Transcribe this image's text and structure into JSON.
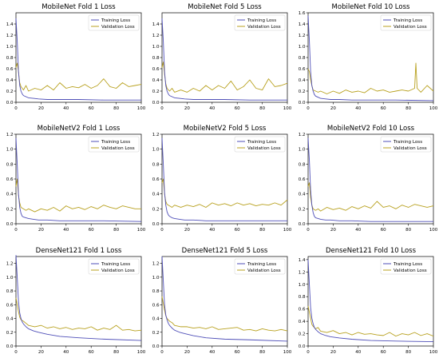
{
  "chart_data": [
    {
      "type": "line",
      "title": "MobileNet Fold 1 Loss",
      "xlim": [
        0,
        100
      ],
      "ylim": [
        0,
        1.6
      ],
      "yticks": [
        0.0,
        0.2,
        0.4,
        0.6,
        0.8,
        1.0,
        1.2,
        1.4
      ],
      "xticks": [
        0,
        20,
        40,
        60,
        80,
        100
      ],
      "legend": "top-right",
      "series": [
        {
          "name": "Training Loss",
          "color": "#4f4fb8",
          "x": [
            0,
            1,
            2,
            3,
            4,
            5,
            6,
            8,
            10,
            14,
            18,
            25,
            35,
            50,
            70,
            100
          ],
          "values": [
            1.5,
            1.1,
            0.55,
            0.3,
            0.2,
            0.15,
            0.12,
            0.1,
            0.08,
            0.07,
            0.06,
            0.05,
            0.05,
            0.05,
            0.04,
            0.04
          ]
        },
        {
          "name": "Validation Loss",
          "color": "#b8a11f",
          "x": [
            0,
            1,
            2,
            3,
            4,
            6,
            8,
            10,
            15,
            20,
            25,
            30,
            35,
            40,
            45,
            50,
            55,
            60,
            65,
            70,
            75,
            80,
            85,
            90,
            95,
            100
          ],
          "values": [
            0.62,
            0.7,
            0.55,
            0.35,
            0.28,
            0.22,
            0.3,
            0.2,
            0.25,
            0.22,
            0.3,
            0.22,
            0.35,
            0.25,
            0.28,
            0.26,
            0.32,
            0.25,
            0.3,
            0.42,
            0.28,
            0.25,
            0.35,
            0.28,
            0.3,
            0.32
          ]
        }
      ]
    },
    {
      "type": "line",
      "title": "MobileNet Fold 5 Loss",
      "xlim": [
        0,
        100
      ],
      "ylim": [
        0,
        1.6
      ],
      "yticks": [
        0.0,
        0.2,
        0.4,
        0.6,
        0.8,
        1.0,
        1.2,
        1.4
      ],
      "xticks": [
        0,
        20,
        40,
        60,
        80,
        100
      ],
      "legend": "top-right",
      "series": [
        {
          "name": "Training Loss",
          "color": "#4f4fb8",
          "x": [
            0,
            1,
            2,
            3,
            4,
            5,
            6,
            8,
            10,
            14,
            18,
            25,
            35,
            50,
            70,
            100
          ],
          "values": [
            1.5,
            1.1,
            0.55,
            0.3,
            0.2,
            0.15,
            0.12,
            0.1,
            0.08,
            0.07,
            0.06,
            0.05,
            0.05,
            0.05,
            0.04,
            0.04
          ]
        },
        {
          "name": "Validation Loss",
          "color": "#b8a11f",
          "x": [
            0,
            1,
            2,
            3,
            4,
            6,
            8,
            10,
            15,
            20,
            25,
            30,
            35,
            40,
            45,
            50,
            55,
            60,
            65,
            70,
            75,
            80,
            85,
            90,
            95,
            100
          ],
          "values": [
            0.62,
            0.72,
            0.5,
            0.33,
            0.25,
            0.2,
            0.25,
            0.18,
            0.22,
            0.18,
            0.25,
            0.2,
            0.3,
            0.22,
            0.3,
            0.25,
            0.38,
            0.22,
            0.28,
            0.4,
            0.25,
            0.22,
            0.42,
            0.28,
            0.3,
            0.34
          ]
        }
      ]
    },
    {
      "type": "line",
      "title": "MobileNet Fold 10 Loss",
      "xlim": [
        0,
        100
      ],
      "ylim": [
        0,
        1.6
      ],
      "yticks": [
        0.0,
        0.2,
        0.4,
        0.6,
        0.8,
        1.0,
        1.2,
        1.4,
        1.6
      ],
      "xticks": [
        0,
        20,
        40,
        60,
        80,
        100
      ],
      "legend": "top-right",
      "series": [
        {
          "name": "Training Loss",
          "color": "#4f4fb8",
          "x": [
            0,
            1,
            2,
            3,
            4,
            5,
            6,
            8,
            10,
            14,
            18,
            25,
            35,
            50,
            70,
            100
          ],
          "values": [
            1.55,
            1.1,
            0.55,
            0.3,
            0.2,
            0.14,
            0.11,
            0.09,
            0.07,
            0.06,
            0.05,
            0.05,
            0.04,
            0.04,
            0.04,
            0.03
          ]
        },
        {
          "name": "Validation Loss",
          "color": "#b8a11f",
          "x": [
            0,
            1,
            2,
            3,
            4,
            6,
            8,
            10,
            15,
            20,
            25,
            30,
            35,
            40,
            45,
            50,
            55,
            60,
            65,
            70,
            75,
            80,
            85,
            86,
            87,
            90,
            95,
            100
          ],
          "values": [
            0.6,
            0.55,
            0.4,
            0.3,
            0.22,
            0.2,
            0.18,
            0.2,
            0.15,
            0.2,
            0.16,
            0.22,
            0.18,
            0.2,
            0.17,
            0.25,
            0.2,
            0.22,
            0.18,
            0.2,
            0.22,
            0.2,
            0.25,
            0.7,
            0.25,
            0.18,
            0.3,
            0.2
          ]
        }
      ]
    },
    {
      "type": "line",
      "title": "MobileNetV2  Fold 1 Loss",
      "xlim": [
        0,
        100
      ],
      "ylim": [
        0,
        1.2
      ],
      "yticks": [
        0.0,
        0.2,
        0.4,
        0.6,
        0.8,
        1.0,
        1.2
      ],
      "xticks": [
        0,
        20,
        40,
        60,
        80,
        100
      ],
      "legend": "top-right",
      "series": [
        {
          "name": "Training Loss",
          "color": "#4f4fb8",
          "x": [
            0,
            1,
            2,
            3,
            4,
            5,
            6,
            8,
            10,
            14,
            18,
            25,
            35,
            50,
            70,
            100
          ],
          "values": [
            1.15,
            0.8,
            0.4,
            0.22,
            0.14,
            0.1,
            0.09,
            0.08,
            0.07,
            0.06,
            0.05,
            0.05,
            0.04,
            0.04,
            0.04,
            0.03
          ]
        },
        {
          "name": "Validation Loss",
          "color": "#b8a11f",
          "x": [
            0,
            1,
            2,
            3,
            4,
            6,
            8,
            10,
            15,
            20,
            25,
            30,
            35,
            40,
            45,
            50,
            55,
            60,
            65,
            70,
            75,
            80,
            85,
            90,
            95,
            100
          ],
          "values": [
            0.5,
            0.6,
            0.38,
            0.28,
            0.22,
            0.2,
            0.18,
            0.2,
            0.16,
            0.2,
            0.18,
            0.22,
            0.17,
            0.24,
            0.2,
            0.22,
            0.19,
            0.23,
            0.2,
            0.25,
            0.22,
            0.2,
            0.24,
            0.22,
            0.2,
            0.2
          ]
        }
      ]
    },
    {
      "type": "line",
      "title": "MobileNetV2  Fold 5 Loss",
      "xlim": [
        0,
        100
      ],
      "ylim": [
        0,
        1.2
      ],
      "yticks": [
        0.0,
        0.2,
        0.4,
        0.6,
        0.8,
        1.0,
        1.2
      ],
      "xticks": [
        0,
        20,
        40,
        60,
        80,
        100
      ],
      "legend": "top-right",
      "series": [
        {
          "name": "Training Loss",
          "color": "#4f4fb8",
          "x": [
            0,
            1,
            2,
            3,
            4,
            5,
            6,
            8,
            10,
            14,
            18,
            25,
            35,
            50,
            70,
            100
          ],
          "values": [
            1.15,
            0.8,
            0.42,
            0.25,
            0.16,
            0.12,
            0.1,
            0.08,
            0.07,
            0.06,
            0.05,
            0.05,
            0.04,
            0.04,
            0.04,
            0.04
          ]
        },
        {
          "name": "Validation Loss",
          "color": "#b8a11f",
          "x": [
            0,
            1,
            2,
            3,
            4,
            6,
            8,
            10,
            15,
            20,
            25,
            30,
            35,
            40,
            45,
            50,
            55,
            60,
            65,
            70,
            75,
            80,
            85,
            90,
            95,
            100
          ],
          "values": [
            0.55,
            0.6,
            0.4,
            0.3,
            0.26,
            0.24,
            0.22,
            0.25,
            0.22,
            0.25,
            0.23,
            0.26,
            0.22,
            0.28,
            0.25,
            0.27,
            0.24,
            0.28,
            0.25,
            0.27,
            0.24,
            0.26,
            0.25,
            0.28,
            0.25,
            0.32
          ]
        }
      ]
    },
    {
      "type": "line",
      "title": "MobileNetV2  Fold 10 Loss",
      "xlim": [
        0,
        100
      ],
      "ylim": [
        0,
        1.2
      ],
      "yticks": [
        0.0,
        0.2,
        0.4,
        0.6,
        0.8,
        1.0,
        1.2
      ],
      "xticks": [
        0,
        20,
        40,
        60,
        80,
        100
      ],
      "legend": "top-right",
      "series": [
        {
          "name": "Training Loss",
          "color": "#4f4fb8",
          "x": [
            0,
            1,
            2,
            3,
            4,
            5,
            6,
            8,
            10,
            14,
            18,
            25,
            35,
            50,
            70,
            100
          ],
          "values": [
            1.15,
            0.85,
            0.45,
            0.25,
            0.15,
            0.1,
            0.08,
            0.07,
            0.06,
            0.05,
            0.05,
            0.04,
            0.04,
            0.03,
            0.03,
            0.03
          ]
        },
        {
          "name": "Validation Loss",
          "color": "#b8a11f",
          "x": [
            0,
            1,
            2,
            3,
            4,
            6,
            8,
            10,
            15,
            20,
            25,
            30,
            35,
            40,
            45,
            50,
            55,
            60,
            65,
            70,
            75,
            80,
            85,
            90,
            95,
            100
          ],
          "values": [
            0.5,
            0.55,
            0.35,
            0.25,
            0.2,
            0.18,
            0.2,
            0.17,
            0.22,
            0.19,
            0.21,
            0.18,
            0.23,
            0.2,
            0.24,
            0.21,
            0.3,
            0.22,
            0.24,
            0.2,
            0.25,
            0.22,
            0.26,
            0.24,
            0.22,
            0.24
          ]
        }
      ]
    },
    {
      "type": "line",
      "title": "DenseNet121  Fold 1 Loss",
      "xlim": [
        0,
        100
      ],
      "ylim": [
        0,
        1.3
      ],
      "yticks": [
        0.0,
        0.2,
        0.4,
        0.6,
        0.8,
        1.0,
        1.2
      ],
      "xticks": [
        0,
        20,
        40,
        60,
        80,
        100
      ],
      "legend": "top-right",
      "series": [
        {
          "name": "Training Loss",
          "color": "#4f4fb8",
          "x": [
            0,
            1,
            2,
            3,
            4,
            5,
            6,
            8,
            10,
            14,
            18,
            25,
            35,
            50,
            70,
            100
          ],
          "values": [
            1.32,
            1.0,
            0.65,
            0.48,
            0.4,
            0.35,
            0.32,
            0.28,
            0.25,
            0.22,
            0.2,
            0.17,
            0.14,
            0.12,
            0.1,
            0.08
          ]
        },
        {
          "name": "Validation Loss",
          "color": "#b8a11f",
          "x": [
            0,
            1,
            2,
            3,
            4,
            6,
            8,
            10,
            15,
            20,
            25,
            30,
            35,
            40,
            45,
            50,
            55,
            60,
            65,
            70,
            75,
            80,
            85,
            90,
            95,
            100
          ],
          "values": [
            0.7,
            0.6,
            0.5,
            0.42,
            0.38,
            0.36,
            0.33,
            0.3,
            0.28,
            0.3,
            0.26,
            0.28,
            0.25,
            0.27,
            0.24,
            0.26,
            0.25,
            0.28,
            0.23,
            0.26,
            0.24,
            0.3,
            0.23,
            0.24,
            0.22,
            0.23
          ]
        }
      ]
    },
    {
      "type": "line",
      "title": "DenseNet121  Fold 5 Loss",
      "xlim": [
        0,
        100
      ],
      "ylim": [
        0,
        1.3
      ],
      "yticks": [
        0.0,
        0.2,
        0.4,
        0.6,
        0.8,
        1.0,
        1.2
      ],
      "xticks": [
        0,
        20,
        40,
        60,
        80,
        100
      ],
      "legend": "top-right",
      "series": [
        {
          "name": "Training Loss",
          "color": "#4f4fb8",
          "x": [
            0,
            1,
            2,
            3,
            4,
            5,
            6,
            8,
            10,
            14,
            18,
            25,
            35,
            50,
            70,
            100
          ],
          "values": [
            1.3,
            0.95,
            0.6,
            0.45,
            0.38,
            0.33,
            0.3,
            0.26,
            0.23,
            0.2,
            0.18,
            0.15,
            0.12,
            0.1,
            0.09,
            0.07
          ]
        },
        {
          "name": "Validation Loss",
          "color": "#b8a11f",
          "x": [
            0,
            1,
            2,
            3,
            4,
            6,
            8,
            10,
            15,
            20,
            25,
            30,
            35,
            40,
            45,
            50,
            55,
            60,
            65,
            70,
            75,
            80,
            85,
            90,
            95,
            100
          ],
          "values": [
            0.72,
            0.62,
            0.52,
            0.44,
            0.4,
            0.36,
            0.34,
            0.3,
            0.28,
            0.28,
            0.26,
            0.27,
            0.25,
            0.28,
            0.24,
            0.25,
            0.26,
            0.27,
            0.23,
            0.24,
            0.22,
            0.25,
            0.23,
            0.22,
            0.24,
            0.22
          ]
        }
      ]
    },
    {
      "type": "line",
      "title": "DenseNet121  Fold 10 Loss",
      "xlim": [
        0,
        100
      ],
      "ylim": [
        0,
        1.45
      ],
      "yticks": [
        0.0,
        0.2,
        0.4,
        0.6,
        0.8,
        1.0,
        1.2,
        1.4
      ],
      "xticks": [
        0,
        20,
        40,
        60,
        80,
        100
      ],
      "legend": "top-right",
      "series": [
        {
          "name": "Training Loss",
          "color": "#4f4fb8",
          "x": [
            0,
            1,
            2,
            3,
            4,
            5,
            6,
            8,
            10,
            14,
            18,
            25,
            35,
            50,
            70,
            100
          ],
          "values": [
            1.4,
            1.0,
            0.62,
            0.45,
            0.36,
            0.3,
            0.27,
            0.23,
            0.2,
            0.17,
            0.15,
            0.13,
            0.11,
            0.09,
            0.08,
            0.07
          ]
        },
        {
          "name": "Validation Loss",
          "color": "#b8a11f",
          "x": [
            0,
            1,
            2,
            3,
            4,
            6,
            8,
            10,
            15,
            20,
            25,
            30,
            35,
            40,
            45,
            50,
            55,
            60,
            65,
            70,
            75,
            80,
            85,
            90,
            95,
            100
          ],
          "values": [
            0.65,
            0.55,
            0.45,
            0.35,
            0.32,
            0.28,
            0.3,
            0.24,
            0.22,
            0.25,
            0.2,
            0.22,
            0.18,
            0.22,
            0.19,
            0.2,
            0.18,
            0.17,
            0.22,
            0.16,
            0.2,
            0.18,
            0.22,
            0.17,
            0.2,
            0.16
          ]
        }
      ]
    }
  ]
}
